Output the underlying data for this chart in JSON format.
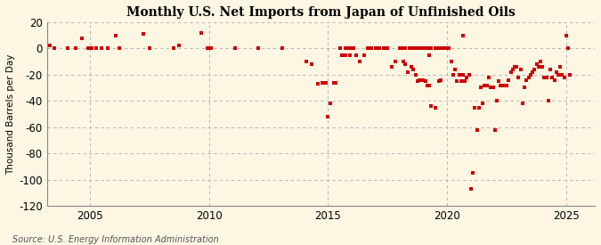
{
  "title": "Monthly U.S. Net Imports from Japan of Unfinished Oils",
  "ylabel": "Thousand Barrels per Day",
  "source": "Source: U.S. Energy Information Administration",
  "ylim": [
    -120,
    20
  ],
  "yticks": [
    -120,
    -100,
    -80,
    -60,
    -40,
    -20,
    0,
    20
  ],
  "bg_color": "#fdf6e3",
  "marker_color": "#cc0000",
  "grid_color": "#aaaaaa",
  "vline_color": "#aaaaaa",
  "xticks": [
    2005,
    2010,
    2015,
    2020,
    2025
  ],
  "xlim": [
    2003.2,
    2026.2
  ],
  "data_points": [
    [
      2003.33,
      2
    ],
    [
      2003.5,
      0
    ],
    [
      2004.08,
      0
    ],
    [
      2004.42,
      0
    ],
    [
      2004.67,
      8
    ],
    [
      2004.92,
      0
    ],
    [
      2005.08,
      0
    ],
    [
      2005.25,
      0
    ],
    [
      2005.5,
      0
    ],
    [
      2005.75,
      0
    ],
    [
      2006.08,
      10
    ],
    [
      2006.25,
      0
    ],
    [
      2007.25,
      11
    ],
    [
      2007.5,
      0
    ],
    [
      2008.5,
      0
    ],
    [
      2008.75,
      2
    ],
    [
      2009.67,
      12
    ],
    [
      2009.92,
      0
    ],
    [
      2010.08,
      0
    ],
    [
      2011.08,
      0
    ],
    [
      2012.08,
      0
    ],
    [
      2013.08,
      0
    ],
    [
      2014.08,
      -10
    ],
    [
      2014.33,
      -12
    ],
    [
      2014.58,
      -27
    ],
    [
      2014.75,
      -26
    ],
    [
      2014.92,
      -26
    ],
    [
      2015.0,
      -52
    ],
    [
      2015.08,
      -42
    ],
    [
      2015.25,
      -26
    ],
    [
      2015.33,
      -26
    ],
    [
      2015.5,
      0
    ],
    [
      2015.58,
      -5
    ],
    [
      2015.67,
      -5
    ],
    [
      2015.75,
      -5
    ],
    [
      2015.92,
      -5
    ],
    [
      2016.0,
      0
    ],
    [
      2016.08,
      0
    ],
    [
      2016.17,
      -5
    ],
    [
      2016.33,
      -10
    ],
    [
      2016.5,
      -5
    ],
    [
      2016.67,
      0
    ],
    [
      2016.83,
      0
    ],
    [
      2017.0,
      0
    ],
    [
      2017.17,
      0
    ],
    [
      2017.33,
      0
    ],
    [
      2017.5,
      0
    ],
    [
      2017.67,
      -14
    ],
    [
      2017.83,
      -10
    ],
    [
      2018.0,
      0
    ],
    [
      2018.08,
      0
    ],
    [
      2018.17,
      0
    ],
    [
      2018.25,
      0
    ],
    [
      2018.42,
      0
    ],
    [
      2018.58,
      0
    ],
    [
      2018.67,
      0
    ],
    [
      2018.83,
      0
    ],
    [
      2019.0,
      0
    ],
    [
      2019.08,
      0
    ],
    [
      2019.17,
      0
    ],
    [
      2019.25,
      -5
    ],
    [
      2019.33,
      0
    ],
    [
      2019.5,
      0
    ],
    [
      2019.67,
      0
    ],
    [
      2019.75,
      0
    ],
    [
      2019.83,
      0
    ],
    [
      2019.92,
      0
    ],
    [
      2020.0,
      0
    ],
    [
      2020.08,
      0
    ],
    [
      2020.17,
      -10
    ],
    [
      2020.25,
      -20
    ],
    [
      2020.33,
      -16
    ],
    [
      2020.42,
      -25
    ],
    [
      2020.5,
      -20
    ],
    [
      2020.58,
      -25
    ],
    [
      2020.67,
      -20
    ],
    [
      2020.75,
      -25
    ],
    [
      2020.83,
      -22
    ],
    [
      2020.92,
      -20
    ],
    [
      2021.0,
      -107
    ],
    [
      2021.08,
      -95
    ],
    [
      2021.17,
      -45
    ],
    [
      2021.25,
      -62
    ],
    [
      2021.33,
      -45
    ],
    [
      2021.42,
      -30
    ],
    [
      2021.5,
      -42
    ],
    [
      2021.58,
      -28
    ],
    [
      2021.67,
      -28
    ],
    [
      2021.75,
      -22
    ],
    [
      2021.83,
      -30
    ],
    [
      2021.92,
      -30
    ],
    [
      2022.0,
      -62
    ],
    [
      2022.08,
      -40
    ],
    [
      2022.17,
      -25
    ],
    [
      2022.25,
      -28
    ],
    [
      2022.33,
      -28
    ],
    [
      2022.42,
      -28
    ],
    [
      2022.5,
      -28
    ],
    [
      2022.58,
      -24
    ],
    [
      2022.67,
      -18
    ],
    [
      2022.75,
      -16
    ],
    [
      2022.83,
      -14
    ],
    [
      2022.92,
      -14
    ],
    [
      2023.0,
      -22
    ],
    [
      2023.08,
      -16
    ],
    [
      2023.17,
      -42
    ],
    [
      2023.25,
      -30
    ],
    [
      2023.33,
      -24
    ],
    [
      2023.42,
      -22
    ],
    [
      2023.5,
      -20
    ],
    [
      2023.58,
      -18
    ],
    [
      2023.67,
      -16
    ],
    [
      2023.75,
      -12
    ],
    [
      2023.83,
      -14
    ],
    [
      2023.92,
      -10
    ],
    [
      2024.0,
      -14
    ],
    [
      2024.08,
      -22
    ],
    [
      2024.17,
      -22
    ],
    [
      2024.25,
      -40
    ],
    [
      2024.33,
      -16
    ],
    [
      2024.42,
      -22
    ],
    [
      2024.5,
      -24
    ],
    [
      2024.58,
      -18
    ],
    [
      2024.67,
      -20
    ],
    [
      2024.75,
      -14
    ],
    [
      2024.83,
      -20
    ],
    [
      2024.92,
      -22
    ],
    [
      2025.0,
      10
    ],
    [
      2025.08,
      0
    ],
    [
      2025.17,
      -20
    ],
    [
      2015.75,
      0
    ],
    [
      2015.83,
      0
    ],
    [
      2016.0,
      0
    ],
    [
      2017.0,
      0
    ],
    [
      2018.0,
      0
    ],
    [
      2018.08,
      0
    ],
    [
      2018.17,
      -10
    ],
    [
      2018.25,
      -12
    ],
    [
      2018.33,
      -18
    ],
    [
      2018.5,
      -14
    ],
    [
      2018.58,
      -16
    ],
    [
      2018.67,
      -20
    ],
    [
      2018.75,
      -25
    ],
    [
      2018.83,
      -24
    ],
    [
      2019.0,
      -24
    ],
    [
      2019.08,
      -25
    ],
    [
      2019.17,
      -28
    ],
    [
      2019.25,
      -28
    ],
    [
      2019.33,
      -44
    ],
    [
      2019.5,
      -45
    ],
    [
      2019.67,
      -25
    ],
    [
      2019.75,
      -24
    ],
    [
      2020.67,
      10
    ]
  ]
}
